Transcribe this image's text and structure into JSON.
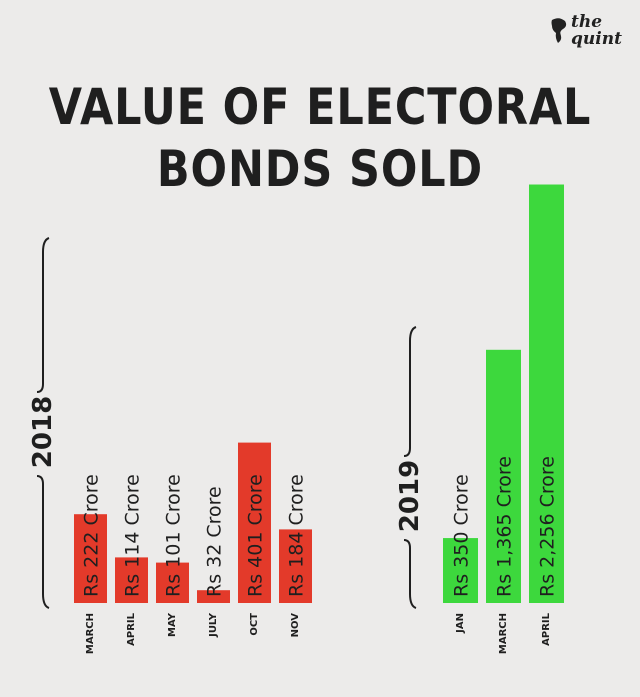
{
  "brand": {
    "name_line1": "the",
    "name_line2": "quint",
    "logo_icon": "quint-dragon-icon"
  },
  "title_line1": "VALUE OF ELECTORAL",
  "title_line2": "BONDS SOLD",
  "colors": {
    "y2018": "#e33a2a",
    "y2019": "#3dd83d",
    "text": "#1f1f1f",
    "background": "#ecebea"
  },
  "chart_data": {
    "type": "bar",
    "title": "VALUE OF ELECTORAL BONDS SOLD",
    "unit": "Rs Crore",
    "groups": [
      {
        "year": "2018",
        "categories": [
          "MARCH",
          "APRIL",
          "MAY",
          "JULY",
          "OCT",
          "NOV"
        ],
        "values": [
          222,
          114,
          101,
          32,
          401,
          184
        ],
        "labels": [
          "Rs 222 Crore",
          "Rs 114 Crore",
          "Rs 101 Crore",
          "Rs 32 Crore",
          "Rs 401 Crore",
          "Rs 184 Crore"
        ],
        "color": "#e33a2a"
      },
      {
        "year": "2019",
        "categories": [
          "JAN",
          "MARCH",
          "APRIL"
        ],
        "values": [
          350,
          1365,
          2256
        ],
        "labels": [
          "Rs 350 Crore",
          "Rs 1,365 Crore",
          "Rs 2,256 Crore"
        ],
        "color": "#3dd83d"
      }
    ]
  }
}
